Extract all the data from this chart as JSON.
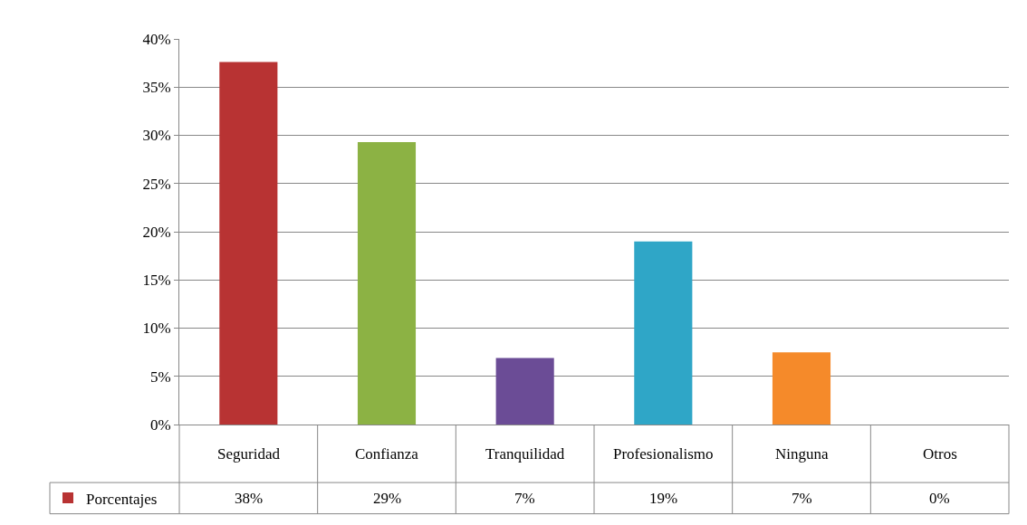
{
  "chart_data": {
    "type": "bar",
    "categories": [
      "Seguridad",
      "Confianza",
      "Tranquilidad",
      "Profesionalismo",
      "Ninguna",
      "Otros"
    ],
    "series": [
      {
        "name": "Porcentajes",
        "colors": [
          "#b83333",
          "#8cb244",
          "#6b4c96",
          "#2fa6c7",
          "#f58a2a",
          "#999999"
        ],
        "values": [
          37.6,
          29.3,
          6.9,
          19.0,
          7.5,
          0
        ],
        "value_labels": [
          "38%",
          "29%",
          "7%",
          "19%",
          "7%",
          "0%"
        ]
      }
    ],
    "ylim": [
      0,
      40
    ],
    "yticks": [
      {
        "value": 0,
        "label": "0%"
      },
      {
        "value": 5,
        "label": "5%"
      },
      {
        "value": 10,
        "label": "10%"
      },
      {
        "value": 15,
        "label": "15%"
      },
      {
        "value": 20,
        "label": "20%"
      },
      {
        "value": 25,
        "label": "25%"
      },
      {
        "value": 30,
        "label": "30%"
      },
      {
        "value": 35,
        "label": "35%"
      },
      {
        "value": 40,
        "label": "40%"
      }
    ],
    "grid": "y",
    "legend": "bottom left"
  }
}
